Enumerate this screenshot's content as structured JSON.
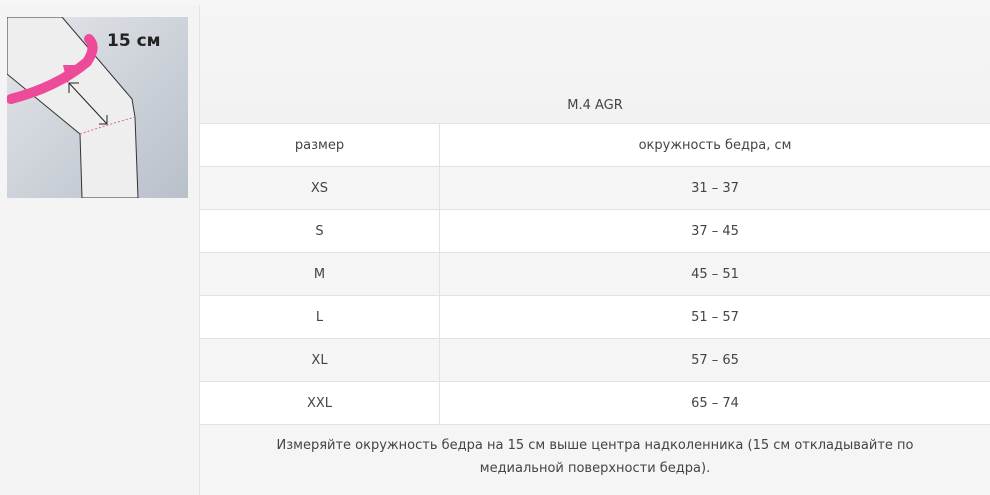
{
  "image": {
    "label": "15 см",
    "accent_color": "#ee4a9a"
  },
  "table": {
    "title": "M.4 AGR",
    "headers": [
      "размер",
      "окружность бедра, см"
    ],
    "rows": [
      {
        "size": "XS",
        "range": "31 – 37"
      },
      {
        "size": "S",
        "range": "37 – 45"
      },
      {
        "size": "M",
        "range": "45 – 51"
      },
      {
        "size": "L",
        "range": "51 – 57"
      },
      {
        "size": "XL",
        "range": "57 – 65"
      },
      {
        "size": "XXL",
        "range": "65 – 74"
      }
    ],
    "note": "Измеряйте окружность бедра на 15 см выше центра надколенника (15 см откладывайте по медиальной поверхности бедра)."
  }
}
